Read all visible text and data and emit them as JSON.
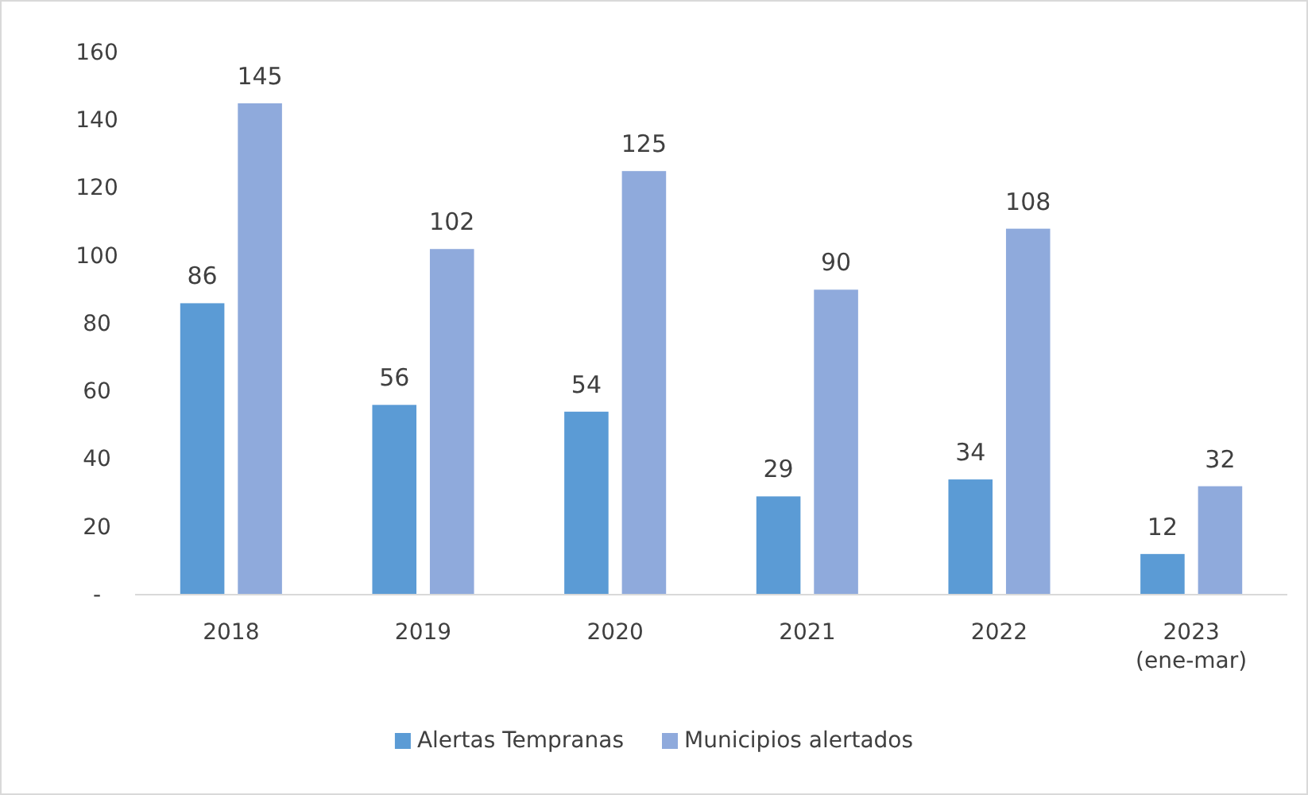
{
  "chart_data": {
    "type": "bar",
    "categories": [
      "2018",
      "2019",
      "2020",
      "2021",
      "2022",
      "2023 (ene-mar)"
    ],
    "series": [
      {
        "name": "Alertas Tempranas",
        "color": "#5b9bd5",
        "values": [
          86,
          56,
          54,
          29,
          34,
          12
        ]
      },
      {
        "name": "Municipios alertados",
        "color": "#8faadc",
        "values": [
          145,
          102,
          125,
          90,
          108,
          32
        ]
      }
    ],
    "ylim": [
      0,
      160
    ],
    "yticks": [
      {
        "value": 0,
        "label": "-"
      },
      20,
      40,
      60,
      80,
      100,
      120,
      140,
      160
    ],
    "data_labels": true,
    "legend": "bottom",
    "grid": false
  }
}
